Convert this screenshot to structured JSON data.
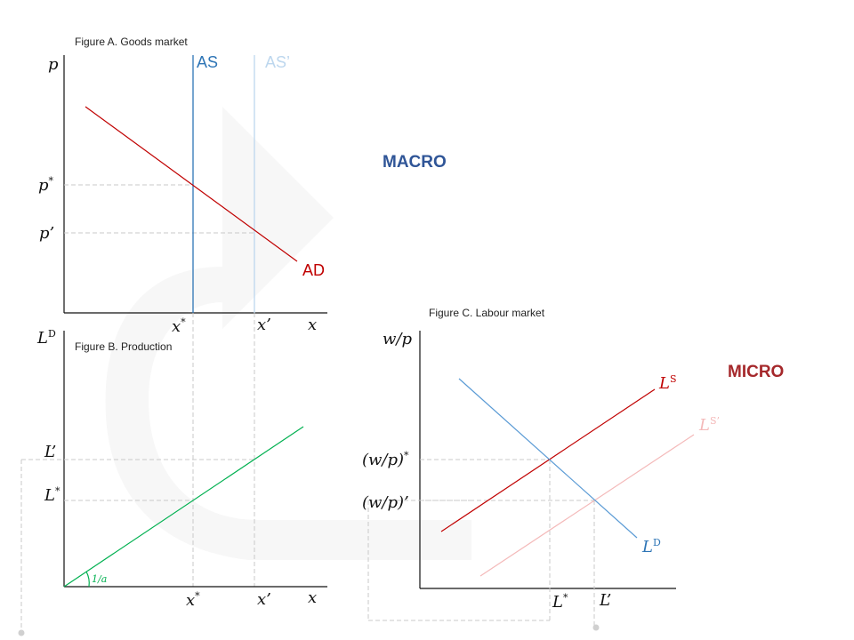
{
  "figure_a": {
    "caption": "Figure A. Goods market",
    "y_axis": "p",
    "x_axis": "x",
    "as_label": "AS",
    "as_shift_label": "AS’",
    "ad_label": "AD",
    "p_star": "p",
    "p_star_sup": "*",
    "p_prime": "p’",
    "x_star": "x",
    "x_star_sup": "*",
    "x_prime": "x’"
  },
  "figure_b": {
    "caption": "Figure B. Production",
    "y_axis": "L",
    "y_axis_sup": "D",
    "x_axis": "x",
    "l_prime": "L’",
    "l_star": "L",
    "l_star_sup": "*",
    "slope_label": "1/a",
    "x_star": "x",
    "x_star_sup": "*",
    "x_prime": "x’"
  },
  "figure_c": {
    "caption": "Figure C. Labour market",
    "y_axis": "w/p",
    "wp_star": "(w/p)",
    "wp_star_sup": "*",
    "wp_prime": "(w/p)’",
    "ls_label": "L",
    "ls_sup": "S",
    "ls_shift_label": "L",
    "ls_shift_sup": "S’",
    "ld_label": "L",
    "ld_sup": "D",
    "l_star": "L",
    "l_star_sup": "*",
    "l_prime": "L’"
  },
  "macro_label": "MACRO",
  "micro_label": "MICRO",
  "colors": {
    "as": "#2e75b6",
    "as_shift": "#bdd7ee",
    "ad": "#c00000",
    "production": "#00b050",
    "ls": "#c00000",
    "ls_shift": "#f4b9b9",
    "ld": "#5b9bd5",
    "macro": "#2f5597",
    "micro": "#a5282b"
  }
}
